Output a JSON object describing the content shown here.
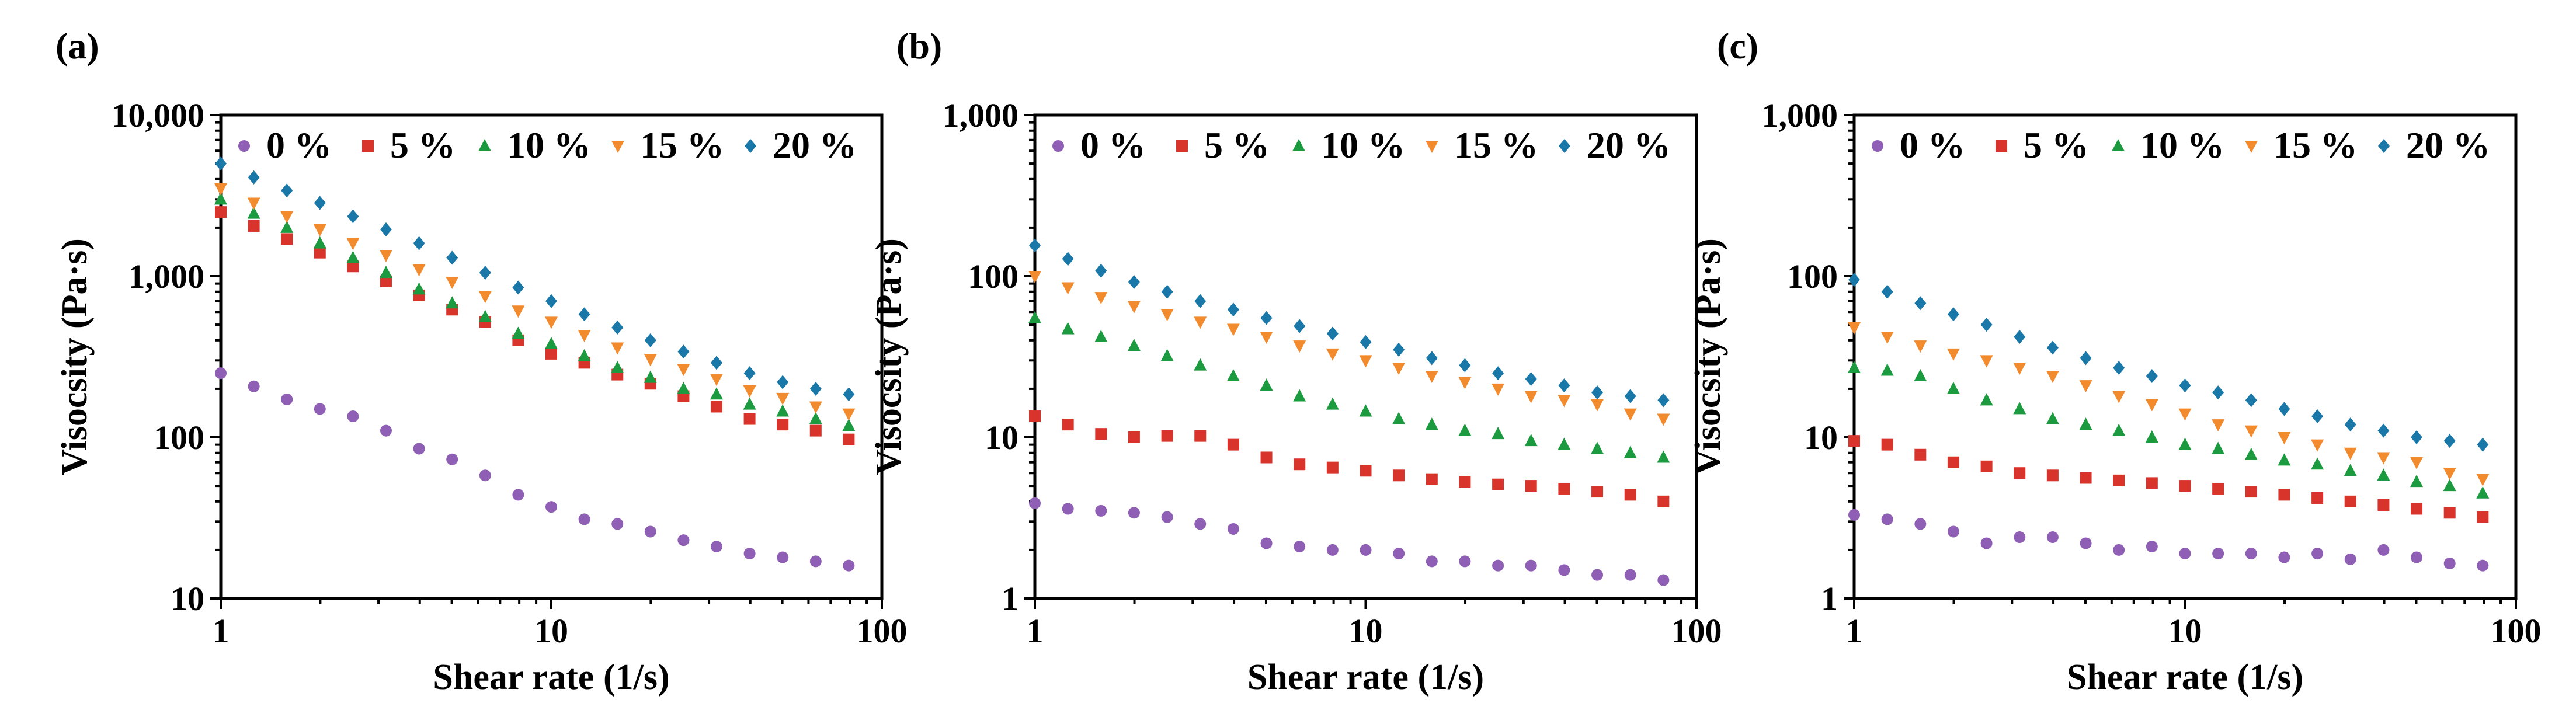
{
  "colors": {
    "0 %": "#8e5fb4",
    "5 %": "#d9342b",
    "10 %": "#1c9a3f",
    "15 %": "#f28a2e",
    "20 %": "#1a78a8"
  },
  "chart_data": [
    {
      "type": "scatter",
      "panel_label": "(a)",
      "xlabel": "Shear rate (1/s)",
      "ylabel": "Visocsity (Pa·s)",
      "xscale": "log",
      "yscale": "log",
      "xlim": [
        1,
        100
      ],
      "ylim": [
        10,
        10000
      ],
      "xticks": [
        "1",
        "10",
        "100"
      ],
      "yticks": [
        "10",
        "100",
        "1,000",
        "10,000"
      ],
      "legend_location": "top",
      "x": [
        1,
        1.259,
        1.585,
        1.995,
        2.512,
        3.162,
        3.981,
        5.012,
        6.31,
        7.943,
        10,
        12.59,
        15.85,
        19.95,
        25.12,
        31.62,
        39.81,
        50.12,
        63.1,
        79.43
      ],
      "series": [
        {
          "name": "0 %",
          "marker": "circle",
          "values": [
            250,
            207,
            172,
            150,
            135,
            110,
            85,
            73,
            58,
            44,
            37,
            31,
            29,
            26,
            23,
            21,
            19,
            18,
            17,
            16
          ]
        },
        {
          "name": "5 %",
          "marker": "square",
          "values": [
            2500,
            2050,
            1700,
            1400,
            1150,
            930,
            760,
            620,
            520,
            400,
            330,
            290,
            245,
            215,
            180,
            155,
            130,
            120,
            110,
            97
          ]
        },
        {
          "name": "10 %",
          "marker": "triangle-up",
          "values": [
            3000,
            2450,
            2000,
            1600,
            1300,
            1050,
            830,
            680,
            560,
            440,
            380,
            320,
            270,
            235,
            200,
            185,
            160,
            145,
            130,
            118
          ]
        },
        {
          "name": "15 %",
          "marker": "triangle-down",
          "values": [
            3500,
            2850,
            2350,
            1950,
            1600,
            1350,
            1100,
            920,
            750,
            610,
            520,
            430,
            360,
            305,
            265,
            230,
            195,
            175,
            155,
            140
          ]
        },
        {
          "name": "20 %",
          "marker": "diamond",
          "values": [
            5000,
            4100,
            3400,
            2850,
            2350,
            1950,
            1600,
            1300,
            1050,
            850,
            700,
            580,
            480,
            400,
            340,
            290,
            250,
            220,
            200,
            185
          ]
        }
      ]
    },
    {
      "type": "scatter",
      "panel_label": "(b)",
      "xlabel": "Shear rate (1/s)",
      "ylabel": "Visocsity (Pa·s)",
      "xscale": "log",
      "yscale": "log",
      "xlim": [
        1,
        100
      ],
      "ylim": [
        1,
        1000
      ],
      "xticks": [
        "1",
        "10",
        "100"
      ],
      "yticks": [
        "1",
        "10",
        "100",
        "1,000"
      ],
      "legend_location": "top",
      "x": [
        1,
        1.259,
        1.585,
        1.995,
        2.512,
        3.162,
        3.981,
        5.012,
        6.31,
        7.943,
        10,
        12.59,
        15.85,
        19.95,
        25.12,
        31.62,
        39.81,
        50.12,
        63.1,
        79.43
      ],
      "series": [
        {
          "name": "0 %",
          "marker": "circle",
          "values": [
            3.9,
            3.6,
            3.5,
            3.4,
            3.2,
            2.9,
            2.7,
            2.2,
            2.1,
            2.0,
            2.0,
            1.9,
            1.7,
            1.7,
            1.6,
            1.6,
            1.5,
            1.4,
            1.4,
            1.3
          ]
        },
        {
          "name": "5 %",
          "marker": "square",
          "values": [
            13.5,
            12.0,
            10.5,
            10.0,
            10.2,
            10.2,
            9.0,
            7.5,
            6.8,
            6.5,
            6.2,
            5.8,
            5.5,
            5.3,
            5.1,
            5.0,
            4.8,
            4.6,
            4.4,
            4.0
          ]
        },
        {
          "name": "10 %",
          "marker": "triangle-up",
          "values": [
            55,
            47,
            42,
            37,
            32,
            28,
            24,
            21,
            18,
            16,
            14.5,
            13,
            12,
            11,
            10.5,
            9.5,
            9.0,
            8.5,
            8.0,
            7.5
          ]
        },
        {
          "name": "15 %",
          "marker": "triangle-down",
          "values": [
            100,
            85,
            74,
            65,
            58,
            52,
            47,
            42,
            37,
            33,
            30,
            27,
            24,
            22,
            20,
            18,
            17,
            16,
            14,
            13
          ]
        },
        {
          "name": "20 %",
          "marker": "diamond",
          "values": [
            155,
            128,
            108,
            92,
            80,
            70,
            62,
            55,
            49,
            44,
            39,
            35,
            31,
            28,
            25,
            23,
            21,
            19,
            18,
            17
          ]
        }
      ]
    },
    {
      "type": "scatter",
      "panel_label": "(c)",
      "xlabel": "Shear rate (1/s)",
      "ylabel": "Visocsity (Pa·s)",
      "xscale": "log",
      "yscale": "log",
      "xlim": [
        1,
        100
      ],
      "ylim": [
        1,
        1000
      ],
      "xticks": [
        "1",
        "10",
        "100"
      ],
      "yticks": [
        "1",
        "10",
        "100",
        "1,000"
      ],
      "legend_location": "top",
      "x": [
        1,
        1.259,
        1.585,
        1.995,
        2.512,
        3.162,
        3.981,
        5.012,
        6.31,
        7.943,
        10,
        12.59,
        15.85,
        19.95,
        25.12,
        31.62,
        39.81,
        50.12,
        63.1,
        79.43
      ],
      "series": [
        {
          "name": "0 %",
          "marker": "circle",
          "values": [
            3.3,
            3.1,
            2.9,
            2.6,
            2.2,
            2.4,
            2.4,
            2.2,
            2.0,
            2.1,
            1.9,
            1.9,
            1.9,
            1.8,
            1.9,
            1.75,
            2.0,
            1.8,
            1.65,
            1.6
          ]
        },
        {
          "name": "5 %",
          "marker": "square",
          "values": [
            9.5,
            9.0,
            7.8,
            7.0,
            6.6,
            6.0,
            5.8,
            5.6,
            5.4,
            5.2,
            5.0,
            4.8,
            4.6,
            4.4,
            4.2,
            4.0,
            3.8,
            3.6,
            3.4,
            3.2
          ]
        },
        {
          "name": "10 %",
          "marker": "triangle-up",
          "values": [
            27,
            26,
            24,
            20,
            17,
            15,
            13,
            12,
            11,
            10,
            9,
            8.5,
            7.8,
            7.2,
            6.8,
            6.2,
            5.8,
            5.3,
            5.0,
            4.5
          ]
        },
        {
          "name": "15 %",
          "marker": "triangle-down",
          "values": [
            48,
            42,
            37,
            33,
            30,
            27,
            24,
            21,
            18,
            16,
            14,
            12,
            11,
            10,
            9,
            8,
            7.5,
            7,
            6,
            5.5
          ]
        },
        {
          "name": "20 %",
          "marker": "diamond",
          "values": [
            95,
            80,
            68,
            58,
            50,
            42,
            36,
            31,
            27,
            24,
            21,
            19,
            17,
            15,
            13.5,
            12,
            11,
            10,
            9.5,
            9
          ]
        }
      ]
    }
  ]
}
